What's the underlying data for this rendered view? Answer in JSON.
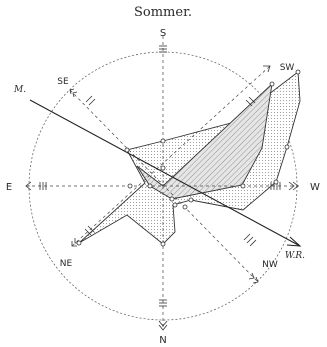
{
  "title": "Sommer.",
  "directions": {
    "n": "N",
    "ne": "NE",
    "e": "E",
    "se": "SE",
    "s": "S",
    "sw": "SW",
    "w": "W",
    "nw": "NW"
  },
  "axis_labels": {
    "m": "M.",
    "wr": "W.R."
  },
  "colors": {
    "ink": "#2a2a2a",
    "shade": "#d9d9d9",
    "hatch": "#8a8a8a"
  }
}
